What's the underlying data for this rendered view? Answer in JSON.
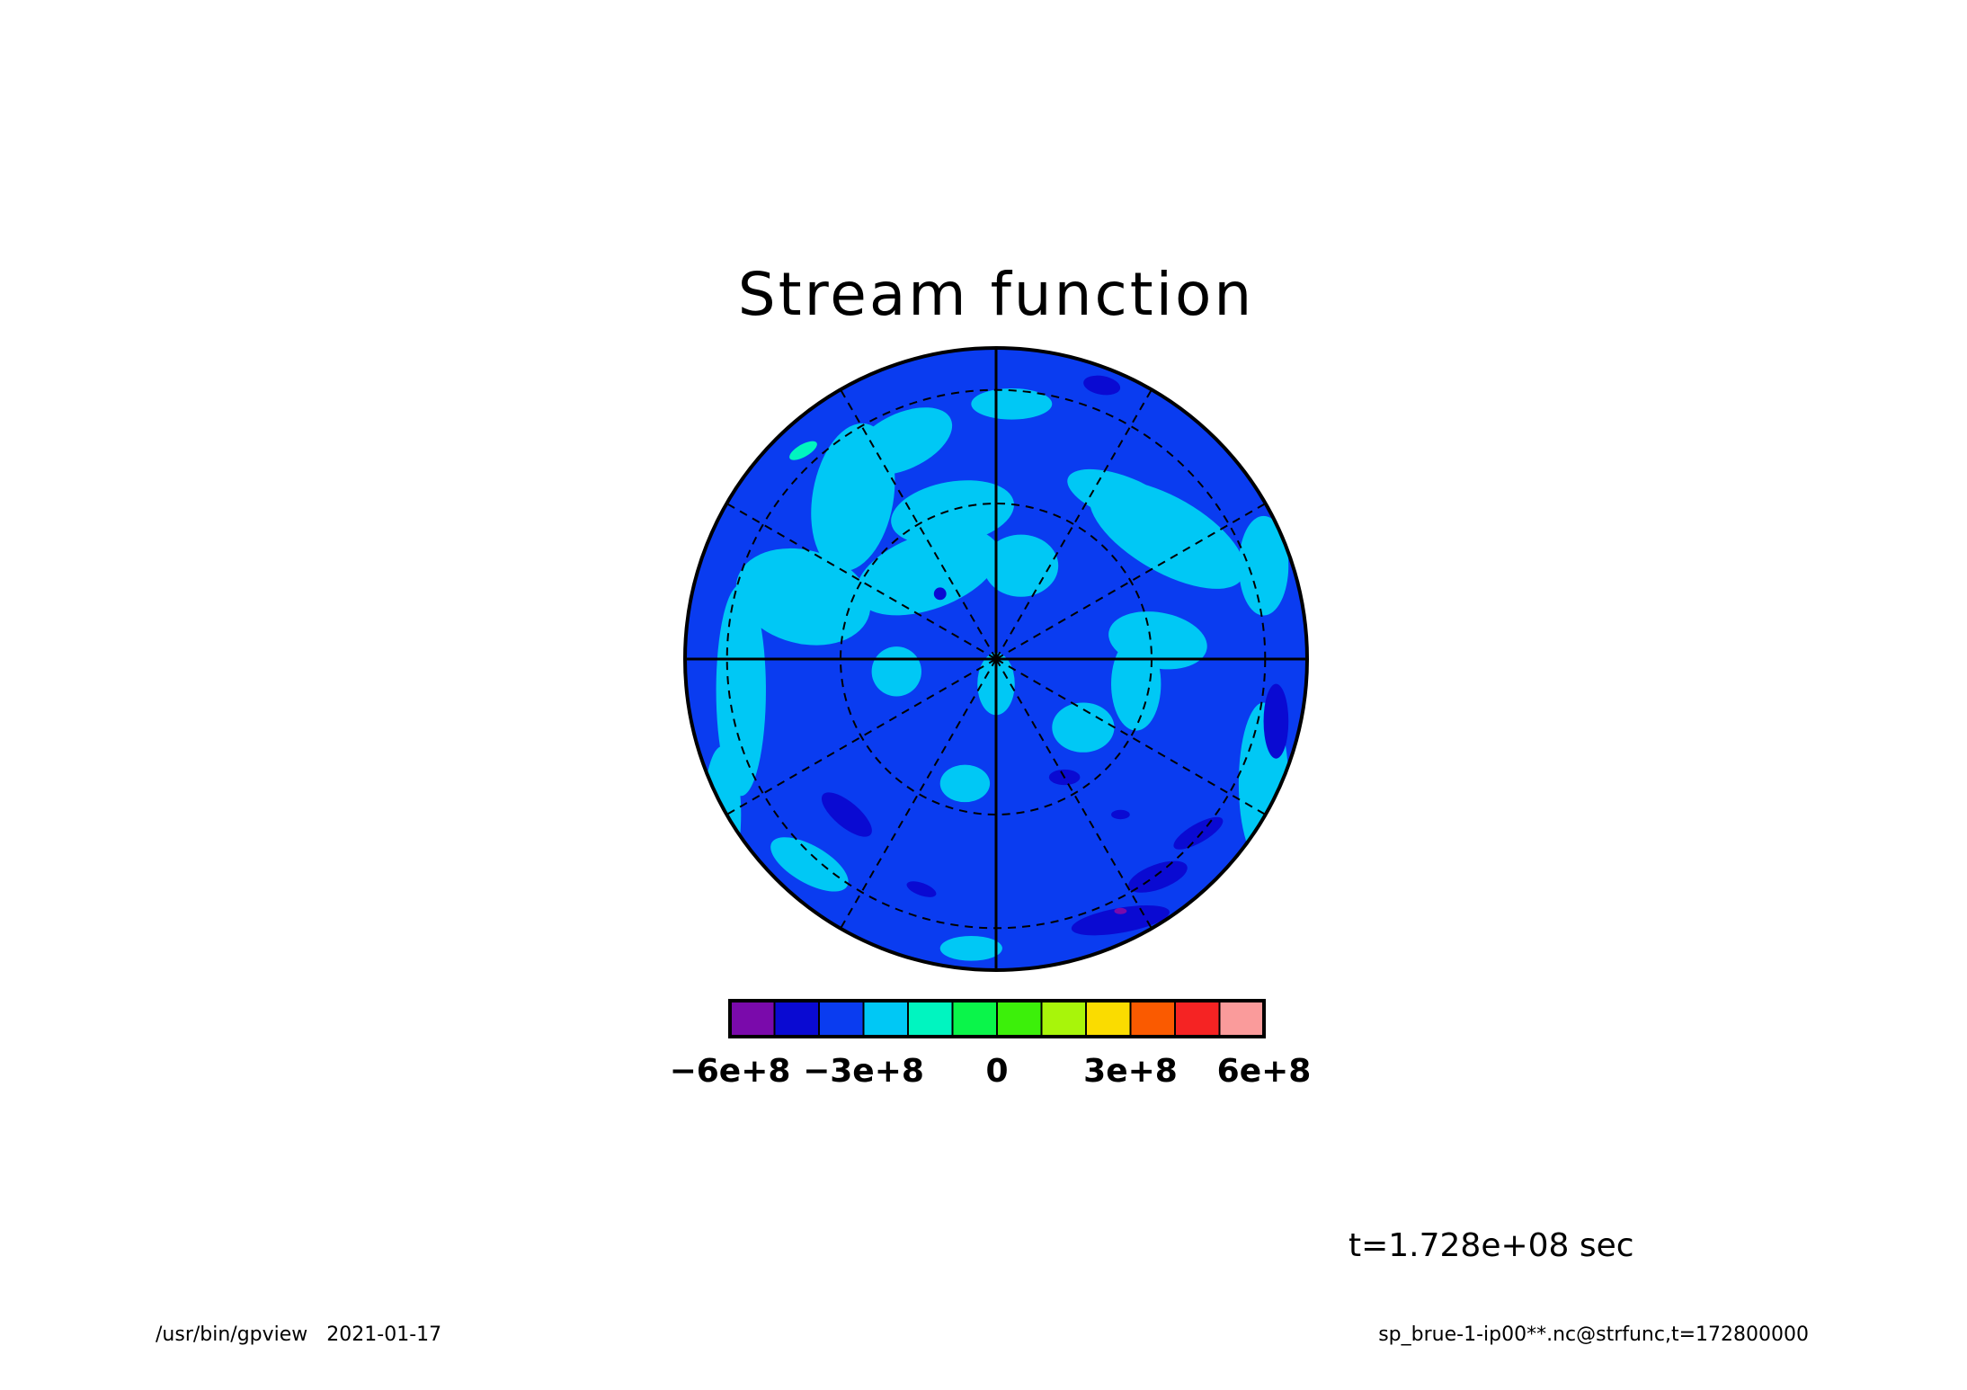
{
  "chart_data": {
    "type": "heatmap",
    "projection": "polar-stereographic",
    "title": "Stream function",
    "colorbar": {
      "colors": [
        "#7a0aab",
        "#0a0ad2",
        "#0a3cf0",
        "#00c8f5",
        "#00f5c0",
        "#0af54a",
        "#3cf00a",
        "#a8f50a",
        "#fadc00",
        "#fa5a00",
        "#f52323",
        "#fa9b9b"
      ],
      "tick_labels": [
        "−6e+8",
        "−3e+8",
        "0",
        "3e+8",
        "6e+8"
      ],
      "tick_values": [
        -600000000,
        -300000000,
        0,
        300000000,
        600000000
      ],
      "range": [
        -600000000,
        600000000
      ]
    },
    "field": {
      "background_level_color": "#0a3cf0",
      "patches_light": [
        [
          -0.3,
          -0.7,
          0.17,
          0.09,
          -25
        ],
        [
          0.05,
          -0.82,
          0.13,
          0.05,
          0
        ],
        [
          -0.46,
          -0.52,
          0.13,
          0.24,
          10
        ],
        [
          -0.14,
          -0.47,
          0.2,
          0.1,
          -10
        ],
        [
          0.4,
          -0.52,
          0.18,
          0.07,
          20
        ],
        [
          -0.62,
          -0.2,
          0.22,
          0.15,
          15
        ],
        [
          0.55,
          -0.4,
          0.28,
          0.12,
          30
        ],
        [
          -0.22,
          -0.28,
          0.24,
          0.12,
          -20
        ],
        [
          0.08,
          -0.3,
          0.12,
          0.1,
          0
        ],
        [
          0.52,
          -0.06,
          0.16,
          0.09,
          10
        ],
        [
          0.86,
          -0.3,
          0.08,
          0.16,
          0
        ],
        [
          -0.82,
          0.1,
          0.08,
          0.34,
          0
        ],
        [
          0.0,
          0.08,
          0.06,
          0.1,
          0
        ],
        [
          0.28,
          0.22,
          0.1,
          0.08,
          0
        ],
        [
          -0.32,
          0.04,
          0.08,
          0.08,
          0
        ],
        [
          -0.88,
          0.5,
          0.06,
          0.22,
          0
        ],
        [
          0.86,
          0.4,
          0.08,
          0.26,
          0
        ],
        [
          0.45,
          0.08,
          0.08,
          0.15,
          0
        ],
        [
          -0.1,
          0.4,
          0.08,
          0.06,
          0
        ],
        [
          -0.08,
          0.93,
          0.1,
          0.04,
          0
        ],
        [
          -0.6,
          0.66,
          0.14,
          0.06,
          30
        ]
      ],
      "patches_dark": [
        [
          -0.48,
          0.5,
          0.1,
          0.04,
          40
        ],
        [
          -0.24,
          0.74,
          0.05,
          0.02,
          20
        ],
        [
          0.52,
          0.7,
          0.1,
          0.04,
          -20
        ],
        [
          0.4,
          0.84,
          0.16,
          0.04,
          -10
        ],
        [
          0.65,
          0.56,
          0.09,
          0.03,
          -30
        ],
        [
          0.9,
          0.2,
          0.04,
          0.12,
          0
        ],
        [
          0.22,
          0.38,
          0.05,
          0.025,
          0
        ],
        [
          0.4,
          0.5,
          0.03,
          0.015,
          0
        ],
        [
          -0.18,
          -0.21,
          0.02,
          0.02,
          0
        ],
        [
          0.34,
          -0.88,
          0.06,
          0.03,
          10
        ]
      ],
      "patches_bright": [
        [
          -0.62,
          -0.67,
          0.05,
          0.02,
          -30
        ]
      ],
      "patches_magenta": [
        [
          0.4,
          0.81,
          0.02,
          0.01,
          0
        ]
      ],
      "light_color": "#00c8f5",
      "dark_color": "#0a0ad2",
      "bright_color": "#00f5c0",
      "magenta_color": "#7a0aab"
    }
  },
  "time_label": "t=1.728e+08 sec",
  "footer": {
    "left": "/usr/bin/gpview   2021-01-17",
    "right": "sp_brue-1-ip00**.nc@strfunc,t=172800000"
  }
}
